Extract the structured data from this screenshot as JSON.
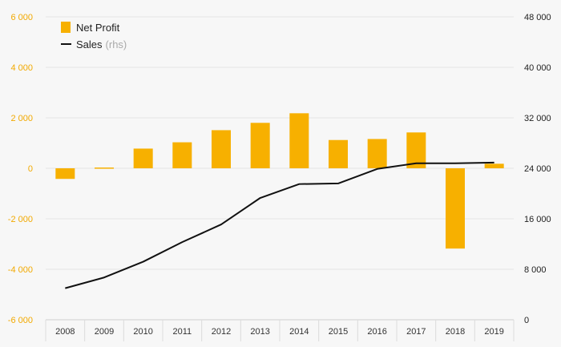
{
  "chart_data": {
    "type": "bar",
    "categories": [
      "2008",
      "2009",
      "2010",
      "2011",
      "2012",
      "2013",
      "2014",
      "2015",
      "2016",
      "2017",
      "2018",
      "2019"
    ],
    "series": [
      {
        "name": "Net Profit",
        "type": "bar",
        "axis": "left",
        "color": "#f7b000",
        "values": [
          -420,
          30,
          780,
          1030,
          1510,
          1800,
          2180,
          1120,
          1160,
          1420,
          -3180,
          180
        ]
      },
      {
        "name": "Sales",
        "type": "line",
        "axis": "right",
        "color": "#111111",
        "values": [
          5000,
          6700,
          9200,
          12300,
          15100,
          19300,
          21500,
          21600,
          23900,
          24800,
          24800,
          24900
        ]
      }
    ],
    "ylim": [
      -6000,
      6000
    ],
    "y2lim": [
      0,
      48000
    ],
    "y_ticks": [
      "6 000",
      "4 000",
      "2 000",
      "0",
      "-2 000",
      "-4 000",
      "-6 000"
    ],
    "y2_ticks": [
      "48 000",
      "40 000",
      "32 000",
      "24 000",
      "16 000",
      "8 000",
      "0"
    ],
    "legend": {
      "bar_label": "Net Profit",
      "line_label": "Sales",
      "line_note": "(rhs)"
    },
    "grid": true,
    "legend_position": "top-left"
  }
}
